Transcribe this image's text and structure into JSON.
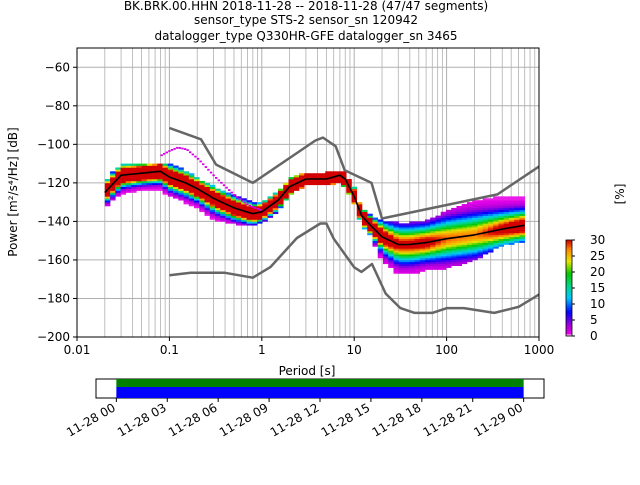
{
  "header": {
    "line1": "BK.BRK.00.HHN   2018-11-28 -- 2018-11-28  (47/47 segments)",
    "line2": "sensor_type STS-2 sensor_sn 120942",
    "line3": "datalogger_type Q330HR-GFE datalogger_sn 3465"
  },
  "colors": {
    "model_lines": "#666666",
    "mean_curve": "#000000",
    "grid": "#b0b0b0",
    "coverage_upper": "#008000",
    "coverage_lower": "#0000ff"
  },
  "colorbar": {
    "label": "[%]",
    "ticks": [
      "0",
      "5",
      "10",
      "15",
      "20",
      "25",
      "30"
    ],
    "range": [
      0,
      30
    ],
    "colormap": "pqlx"
  },
  "chart_data": [
    {
      "type": "heatmap",
      "name": "psd",
      "xlabel": "Period [s]",
      "ylabel": "Power [m²/s⁴/Hz] [dB]",
      "xscale": "log",
      "xlim": [
        0.01,
        1000
      ],
      "ylim": [
        -200,
        -50
      ],
      "x_ticks": [
        0.01,
        0.1,
        1,
        10,
        100,
        1000
      ],
      "x_tick_labels": [
        "0.01",
        "0.1",
        "1",
        "10",
        "100",
        "1000"
      ],
      "y_ticks": [
        -200,
        -180,
        -160,
        -140,
        -120,
        -100,
        -80,
        -60
      ],
      "y_tick_labels": [
        "−200",
        "−180",
        "−160",
        "−140",
        "−120",
        "−100",
        "−80",
        "−60"
      ],
      "grid": true,
      "nhnm": {
        "periods": [
          0.1,
          0.17,
          0.4,
          0.8,
          1.24,
          2.4,
          4.3,
          5,
          6,
          10,
          12,
          15.6,
          21.9,
          31.6,
          45,
          70,
          101,
          154,
          328,
          600,
          1000
        ],
        "db": [
          -168,
          -166.7,
          -166.7,
          -169.2,
          -163.7,
          -148.6,
          -141.1,
          -141.1,
          -149,
          -163.8,
          -166.2,
          -162.1,
          -177.5,
          -185,
          -187.5,
          -187.5,
          -185,
          -185,
          -187.5,
          -184.4,
          -178
        ]
      },
      "nlnm": {
        "periods": [
          0.1,
          0.22,
          0.32,
          0.8,
          3.8,
          4.6,
          6.3,
          7.9,
          15.4,
          20,
          354.8,
          1000
        ],
        "db": [
          -91.5,
          -97.4,
          -110.5,
          -120,
          -98,
          -96.5,
          -101,
          -113.5,
          -120,
          -138.5,
          -126,
          -111.5
        ]
      },
      "mean_curve": {
        "periods": [
          0.02,
          0.025,
          0.03,
          0.05,
          0.08,
          0.1,
          0.15,
          0.2,
          0.3,
          0.5,
          0.8,
          1.0,
          1.5,
          2.0,
          3.0,
          5.0,
          7.0,
          8.0,
          10.0,
          12.0,
          15.0,
          20.0,
          30.0,
          40.0,
          60.0,
          100.0,
          200.0,
          400.0,
          700.0
        ],
        "db": [
          -125,
          -120,
          -116,
          -115,
          -114,
          -117,
          -120,
          -123,
          -128,
          -133,
          -136,
          -135,
          -129,
          -122,
          -118,
          -118,
          -116,
          -118,
          -127,
          -137,
          -142,
          -148,
          -152,
          -152,
          -151,
          -149,
          -147,
          -144,
          -142
        ]
      },
      "occupied_bands": {
        "periods": [
          0.02,
          0.025,
          0.03,
          0.05,
          0.08,
          0.1,
          0.15,
          0.2,
          0.3,
          0.5,
          0.8,
          1.0,
          1.5,
          2.0,
          3.0,
          5.0,
          7.0,
          8.0,
          10.0,
          12.0,
          15.0,
          20.0,
          30.0,
          40.0,
          60.0,
          100.0,
          200.0,
          400.0,
          700.0
        ],
        "db_low": [
          -133,
          -128,
          -126,
          -123,
          -124,
          -126,
          -130,
          -133,
          -139,
          -141,
          -142,
          -140,
          -135,
          -126,
          -121,
          -121,
          -119,
          -122,
          -131,
          -141,
          -147,
          -160,
          -167,
          -167,
          -165,
          -164,
          -160,
          -152,
          -150
        ],
        "db_high": [
          -120,
          -114,
          -111,
          -110,
          -110,
          -110,
          -114,
          -118,
          -122,
          -127,
          -130,
          -130,
          -125,
          -118,
          -115,
          -115,
          -114,
          -115,
          -123,
          -133,
          -137,
          -140,
          -141,
          -141,
          -140,
          -135,
          -130,
          -127,
          -128
        ]
      },
      "outlier_trace": {
        "periods": [
          0.08,
          0.1,
          0.12,
          0.15,
          0.2,
          0.3,
          0.5,
          0.7,
          0.9,
          1.0
        ],
        "db": [
          -106,
          -103.5,
          -102,
          -103,
          -108,
          -117,
          -127,
          -132,
          -134,
          -135
        ]
      }
    },
    {
      "type": "timeline",
      "name": "data coverage",
      "tick_labels": [
        "11-28 00",
        "11-28 03",
        "11-28 06",
        "11-28 09",
        "11-28 12",
        "11-28 15",
        "11-28 18",
        "11-28 21",
        "11-29 00"
      ],
      "tick_hours": [
        0,
        3,
        6,
        9,
        12,
        15,
        18,
        21,
        24
      ],
      "xlim_hours": [
        -1.2,
        25.2
      ],
      "coverage_hours": [
        0,
        24
      ]
    }
  ]
}
